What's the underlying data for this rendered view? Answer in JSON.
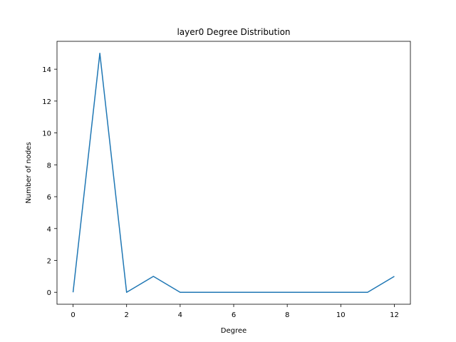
{
  "chart_data": {
    "type": "line",
    "title": "layer0 Degree Distribution",
    "xlabel": "Degree",
    "ylabel": "Number of nodes",
    "xlim": [
      -0.6,
      12.6
    ],
    "ylim": [
      -0.75,
      15.75
    ],
    "x_ticks": [
      0,
      2,
      4,
      6,
      8,
      10,
      12
    ],
    "y_ticks": [
      0,
      2,
      4,
      6,
      8,
      10,
      12,
      14
    ],
    "grid": false,
    "series": [
      {
        "color": "#1f77b4",
        "x": [
          0,
          1,
          2,
          3,
          4,
          5,
          6,
          7,
          8,
          9,
          10,
          11,
          12
        ],
        "y": [
          0,
          15,
          0,
          1,
          0,
          0,
          0,
          0,
          0,
          0,
          0,
          0,
          1
        ]
      }
    ]
  }
}
